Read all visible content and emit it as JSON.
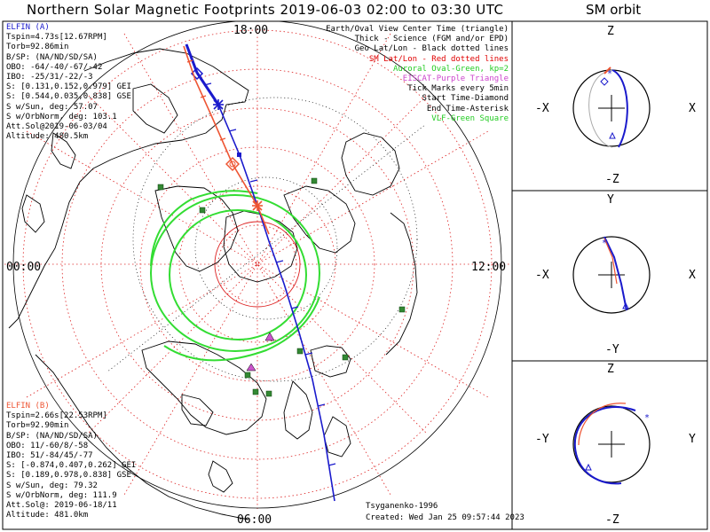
{
  "title": "Northern Solar Magnetic Footprints 2019-06-03 02:00 to 03:30 UTC",
  "orbit_title": "SM orbit",
  "mlt_labels": {
    "top": "18:00",
    "left": "00:00",
    "right": "12:00",
    "bottom": "06:00"
  },
  "elfin_a": {
    "name": "ELFIN (A)",
    "color": "#1a1acc",
    "lines": [
      "Tspin=4.73s[12.67RPM]",
      "Torb=92.86min",
      "B/SP: (NA/ND/SD/SA)",
      "OBO: -64/-40/-67/-42",
      "IBO: -25/31/-22/-3",
      "S: [0.131,0.152,0.979] GEI",
      "S: [0.544,0.035,0.838] GSE",
      "S w/Sun, deg: 57.07",
      "S w/OrbNorm, deg: 103.1",
      "Att.Sol@2019-06-03/04",
      "Altitude: 480.5km"
    ]
  },
  "elfin_b": {
    "name": "ELFIN (B)",
    "color": "#ee5533",
    "lines": [
      "Tspin=2.66s[22.53RPM]",
      "Torb=92.90min",
      "B/SP: (NA/ND/SD/SA)",
      "OBO: 11/-60/8/-58",
      "IBO: 51/-84/45/-77",
      "S: [-0.874,0.407,0.262] GEI",
      "S: [0.189,0.978,0.838] GSE",
      "S w/Sun, deg: 79.32",
      "S w/OrbNorm, deg: 111.9",
      "Att.Sol@: 2019-06-18/11",
      "Altitude: 481.0km"
    ]
  },
  "legend": [
    {
      "text": "Earth/Oval View Center Time (triangle)",
      "color": "#000000"
    },
    {
      "text": "Thick - Science (FGM and/or EPD)",
      "color": "#000000"
    },
    {
      "text": "Geo Lat/Lon - Black dotted lines",
      "color": "#000000"
    },
    {
      "text": "SM Lat/Lon - Red dotted lines",
      "color": "#e00000"
    },
    {
      "text": "Auroral Oval-Green, kp=2",
      "color": "#22cc22"
    },
    {
      "text": "EISCAT-Purple Triangle",
      "color": "#cc44cc"
    },
    {
      "text": "Tick Marks every 5min",
      "color": "#000000"
    },
    {
      "text": "Start Time-Diamond",
      "color": "#000000"
    },
    {
      "text": "End Time-Asterisk",
      "color": "#000000"
    },
    {
      "text": "VLF-Green Square",
      "color": "#22cc22"
    }
  ],
  "model_text": "Tsyganenko-1996",
  "created_text": "Created: Wed Jan 25 09:57:44 2023",
  "orbit_panels": [
    {
      "top": "Z",
      "bottom": "-Z",
      "left": "-X",
      "right": "X"
    },
    {
      "top": "Y",
      "bottom": "-Y",
      "left": "-X",
      "right": "X"
    },
    {
      "top": "Z",
      "bottom": "-Z",
      "left": "-Y",
      "right": "Y"
    }
  ],
  "colors": {
    "sm_grid": "#dd2222",
    "geo_grid": "#000000",
    "oval": "#33dd33",
    "vlf": "#338833",
    "eiscat": "#cc55cc",
    "track_a": "#1a1acc",
    "track_b": "#ee5533"
  }
}
